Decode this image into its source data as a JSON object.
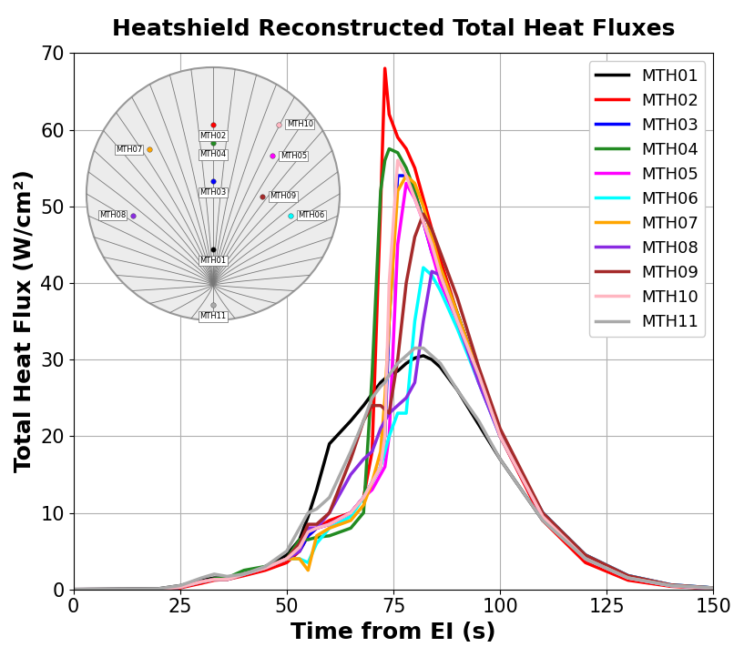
{
  "chart_data": {
    "type": "line",
    "title": "Heatshield Reconstructed Total Heat Fluxes",
    "x_label": "Time from EI (s)",
    "y_label": "Total Heat Flux (W/cm²)",
    "x": [
      0,
      20,
      25,
      30,
      33,
      36,
      40,
      45,
      50,
      53,
      55,
      57,
      60,
      65,
      68,
      70,
      72,
      73,
      74,
      76,
      78,
      80,
      82,
      84,
      86,
      90,
      95,
      100,
      110,
      120,
      130,
      140,
      150
    ],
    "series": [
      {
        "name": "MTH01",
        "color": "#000000",
        "values": [
          0,
          0.1,
          0.5,
          1.2,
          1.5,
          1.5,
          2,
          3,
          4.5,
          6.5,
          9.5,
          13,
          19,
          22,
          24,
          25.5,
          27,
          27.5,
          28,
          28.5,
          29.5,
          30.2,
          30.5,
          30,
          29,
          26,
          21.5,
          17,
          9,
          4,
          1.5,
          0.5,
          0.2
        ]
      },
      {
        "name": "MTH02",
        "color": "#ff0000",
        "values": [
          0,
          0,
          0.2,
          0.8,
          1.2,
          1.3,
          1.8,
          2.5,
          3.5,
          5,
          7,
          8,
          9,
          10,
          12,
          18,
          50,
          68,
          62,
          59,
          57.5,
          55,
          51,
          47,
          43,
          36,
          28,
          20,
          9,
          3.5,
          1.2,
          0.4,
          0.1
        ]
      },
      {
        "name": "MTH03",
        "color": "#0000ff",
        "values": [
          0,
          0,
          0.3,
          1,
          1.3,
          1.3,
          2,
          2.8,
          4,
          5,
          7,
          8,
          8.5,
          10,
          12,
          14,
          16,
          20,
          35,
          54,
          54,
          52,
          48,
          44,
          41,
          36,
          28,
          20,
          10,
          4.5,
          1.8,
          0.6,
          0.2
        ]
      },
      {
        "name": "MTH04",
        "color": "#228b22",
        "values": [
          0,
          0,
          0.3,
          1,
          1.4,
          1.5,
          2.5,
          3,
          4,
          6.5,
          6.5,
          6.8,
          7,
          8,
          10,
          28,
          52,
          56,
          57.5,
          57,
          55,
          52,
          48,
          45,
          42,
          36,
          28,
          20,
          9.5,
          4,
          1.5,
          0.5,
          0.1
        ]
      },
      {
        "name": "MTH05",
        "color": "#ff00ff",
        "values": [
          0,
          0,
          0.3,
          1,
          1.3,
          1.3,
          2,
          2.8,
          4,
          5.5,
          8,
          8,
          8.5,
          10,
          12,
          13,
          15,
          16,
          20,
          45,
          53,
          51,
          48,
          44,
          40,
          35,
          27,
          20,
          9.5,
          4,
          1.5,
          0.5,
          0.1
        ]
      },
      {
        "name": "MTH06",
        "color": "#00ffff",
        "values": [
          0,
          0,
          0.3,
          1,
          1.3,
          1.3,
          2,
          2.8,
          4,
          4,
          3.5,
          6,
          8,
          9.5,
          12,
          14,
          16,
          18,
          20,
          23,
          23,
          35,
          42,
          41,
          39,
          34,
          27,
          20,
          10,
          4.5,
          1.8,
          0.6,
          0.2
        ]
      },
      {
        "name": "MTH07",
        "color": "#ffa500",
        "values": [
          0,
          0,
          0.3,
          1,
          1.3,
          1.3,
          2,
          2.8,
          4,
          4,
          2.5,
          7,
          8,
          9,
          11,
          14,
          18,
          25,
          35,
          52,
          54,
          53,
          50,
          46,
          42,
          36,
          28,
          20,
          9.5,
          4,
          1.5,
          0.5,
          0.1
        ]
      },
      {
        "name": "MTH08",
        "color": "#8a2be2",
        "values": [
          0,
          0,
          0.3,
          1,
          1.3,
          1.3,
          2,
          2.8,
          4,
          5,
          8,
          8,
          10,
          15,
          17,
          18,
          21,
          22,
          23,
          24,
          25,
          27,
          35,
          41.5,
          41,
          35,
          27,
          20,
          9.5,
          4,
          1.5,
          0.5,
          0.1
        ]
      },
      {
        "name": "MTH09",
        "color": "#a52a2a",
        "values": [
          0,
          0,
          0.3,
          1,
          1.3,
          1.3,
          2,
          2.8,
          4,
          6,
          8.5,
          8.5,
          10,
          17,
          22,
          24,
          24,
          23.5,
          23,
          30,
          40,
          46,
          49,
          47,
          44,
          38,
          29,
          21,
          10,
          4.5,
          1.8,
          0.6,
          0.2
        ]
      },
      {
        "name": "MTH10",
        "color": "#ffb6c1",
        "values": [
          0,
          0,
          0.3,
          1,
          1.3,
          1.3,
          2,
          2.8,
          4,
          5.5,
          7.5,
          8,
          8.5,
          10,
          12,
          14,
          16,
          20,
          40,
          56,
          54,
          51,
          48,
          45,
          41,
          35,
          28,
          20,
          9.5,
          4,
          1.5,
          0.5,
          0.1
        ]
      },
      {
        "name": "MTH11",
        "color": "#aaaaaa",
        "values": [
          0,
          0.1,
          0.5,
          1.5,
          2,
          1.7,
          2,
          3,
          5,
          8,
          10,
          10.5,
          12,
          18,
          22,
          25,
          26.5,
          27,
          28,
          29.5,
          30.5,
          31.5,
          31.5,
          30.5,
          29.5,
          26,
          22,
          17,
          9,
          4,
          1.5,
          0.5,
          0.2
        ]
      }
    ],
    "xlim": [
      0,
      150
    ],
    "xticks": [
      0,
      25,
      50,
      75,
      100,
      125,
      150
    ],
    "ylim": [
      0,
      70
    ],
    "yticks": [
      0,
      10,
      20,
      30,
      40,
      50,
      60,
      70
    ],
    "grid": true,
    "legend": "upper right"
  }
}
